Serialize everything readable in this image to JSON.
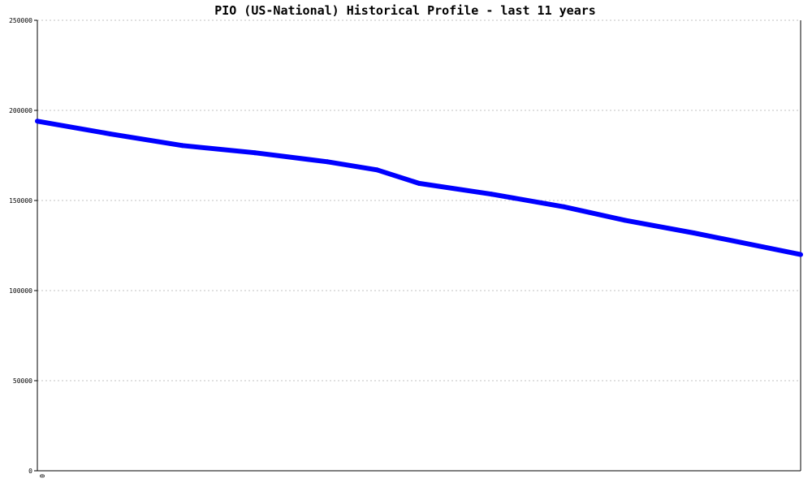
{
  "chart_data": {
    "type": "line",
    "title": "PIO (US-National) Historical Profile - last 11 years",
    "xlabel": "",
    "ylabel": "",
    "x_tick_labels": [
      "0"
    ],
    "ylim": [
      0,
      250000
    ],
    "y_ticks": [
      0,
      50000,
      100000,
      150000,
      200000,
      250000
    ],
    "grid": true,
    "legend": "none",
    "series": [
      {
        "color": "#0000ff",
        "x": [
          0,
          0.095,
          0.19,
          0.285,
          0.38,
          0.445,
          0.5,
          0.595,
          0.69,
          0.77,
          0.86,
          1.0
        ],
        "values": [
          194000,
          187000,
          180500,
          176500,
          171500,
          167000,
          159500,
          153500,
          146500,
          139000,
          132000,
          120000
        ]
      }
    ],
    "colors": {
      "axis": "#000000",
      "grid": "#c0c0c0",
      "line": "#0000ff"
    }
  }
}
